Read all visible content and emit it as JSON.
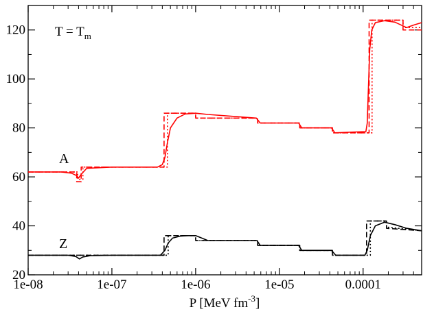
{
  "chart_data": {
    "type": "line",
    "title": "",
    "xlabel": "P [MeV fm",
    "xlabel_exp": "-3",
    "xlabel_end": "]",
    "ylabel": "",
    "xscale": "log",
    "xlim": [
      1e-08,
      0.0005
    ],
    "ylim": [
      20,
      130
    ],
    "grid": false,
    "x_ticks": [
      {
        "value": 1e-08,
        "label": "1e-08"
      },
      {
        "value": 1e-07,
        "label": "1e-07"
      },
      {
        "value": 1e-06,
        "label": "1e-06"
      },
      {
        "value": 1e-05,
        "label": "1e-05"
      },
      {
        "value": 0.0001,
        "label": "0.0001"
      }
    ],
    "y_ticks": [
      {
        "value": 20,
        "label": "20"
      },
      {
        "value": 40,
        "label": "40"
      },
      {
        "value": 60,
        "label": "60"
      },
      {
        "value": 80,
        "label": "80"
      },
      {
        "value": 100,
        "label": "100"
      },
      {
        "value": 120,
        "label": "120"
      }
    ],
    "annotations": {
      "temperature": {
        "main": "T = T",
        "sub": "m",
        "x": 1.5e-08,
        "y": 122
      },
      "A": {
        "text": "A",
        "x": 1.45e-08,
        "y": 64,
        "color": "#ff0000"
      },
      "Z": {
        "text": "Z",
        "x": 1.45e-08,
        "y": 29,
        "color": "#000000"
      }
    },
    "series": [
      {
        "color": "#ff0000",
        "dash": "8,4",
        "x": [
          1e-08,
          3.8e-08,
          3.8e-08,
          4.3e-08,
          4.3e-08,
          4.2e-07,
          4.2e-07,
          1e-06,
          1e-06,
          5.5e-06,
          5.5e-06,
          1.75e-05,
          1.75e-05,
          4.3e-05,
          4.3e-05,
          0.000118,
          0.000118,
          0.0003,
          0.0003,
          0.0005
        ],
        "y": [
          62,
          62,
          58,
          58,
          64,
          64,
          86,
          86,
          84,
          84,
          82,
          82,
          80,
          80,
          78,
          78,
          124,
          124,
          120,
          120
        ]
      },
      {
        "color": "#ff0000",
        "dash": "2,3",
        "x": [
          1e-08,
          3.9e-08,
          3.9e-08,
          4.5e-08,
          4.5e-08,
          4.6e-07,
          4.6e-07,
          1e-06,
          1e-06,
          5.5e-06,
          5.5e-06,
          1.75e-05,
          1.75e-05,
          4.3e-05,
          4.3e-05,
          0.000128,
          0.000128,
          0.0003,
          0.0003,
          0.0005
        ],
        "y": [
          62,
          62,
          59,
          59,
          64,
          64,
          86,
          86,
          84,
          84,
          82,
          82,
          80,
          80,
          78,
          78,
          124,
          124,
          121,
          121
        ]
      },
      {
        "color": "#ff0000",
        "dash": "",
        "x": [
          1e-08,
          2.5e-08,
          3.3e-08,
          3.8e-08,
          4e-08,
          4.3e-08,
          5e-08,
          1e-07,
          3.5e-07,
          4e-07,
          4.3e-07,
          4.6e-07,
          5e-07,
          6e-07,
          7.5e-07,
          1e-06,
          1.4e-06,
          5.3e-06,
          5.9e-06,
          1.7e-05,
          1.85e-05,
          4.2e-05,
          4.6e-05,
          0.000108,
          0.000112,
          0.000115,
          0.00012,
          0.000127,
          0.00014,
          0.00018,
          0.00024,
          0.00033,
          0.0004,
          0.0005
        ],
        "y": [
          62,
          62,
          61.5,
          60.5,
          59.5,
          61,
          63.5,
          64,
          64,
          65,
          68,
          74,
          80,
          84,
          85.7,
          86,
          85.5,
          84,
          82,
          82,
          80,
          80,
          78,
          78.5,
          82,
          94,
          112,
          120,
          123,
          123.8,
          123.2,
          121,
          122,
          123
        ]
      },
      {
        "color": "#000000",
        "dash": "8,4",
        "x": [
          1e-08,
          4.2e-07,
          4.2e-07,
          1e-06,
          1e-06,
          5.5e-06,
          5.5e-06,
          1.75e-05,
          1.75e-05,
          4.3e-05,
          4.3e-05,
          0.00011,
          0.00011,
          0.00019,
          0.00019,
          0.0005
        ],
        "y": [
          28,
          28,
          36,
          36,
          34,
          34,
          32,
          32,
          30,
          30,
          28,
          28,
          42,
          42,
          39,
          38
        ]
      },
      {
        "color": "#000000",
        "dash": "2,3",
        "x": [
          1e-08,
          4.7e-07,
          4.7e-07,
          1e-06,
          1e-06,
          5.5e-06,
          5.5e-06,
          1.75e-05,
          1.75e-05,
          4.3e-05,
          4.3e-05,
          0.000122,
          0.000122,
          0.00019,
          0.00019,
          0.0005
        ],
        "y": [
          28,
          28,
          36,
          36,
          34,
          34,
          32,
          32,
          30,
          30,
          28,
          28,
          42,
          42,
          39.5,
          38
        ]
      },
      {
        "color": "#000000",
        "dash": "",
        "x": [
          1e-08,
          3e-08,
          3.7e-08,
          4.1e-08,
          4.5e-08,
          5.5e-08,
          1e-07,
          3.8e-07,
          4.3e-07,
          4.7e-07,
          5.3e-07,
          6.5e-07,
          8e-07,
          1e-06,
          1.4e-06,
          5.4e-06,
          5.9e-06,
          1.7e-05,
          1.85e-05,
          4.2e-05,
          4.7e-05,
          0.000105,
          0.000112,
          0.000122,
          0.00014,
          0.00018,
          0.00024,
          0.00033,
          0.0005
        ],
        "y": [
          28,
          28,
          27.5,
          26.5,
          27.3,
          27.8,
          28,
          28,
          30,
          33,
          35,
          35.8,
          36,
          36,
          34,
          34,
          32,
          32,
          30,
          30,
          28,
          28,
          30,
          36,
          40,
          41.5,
          40.5,
          39,
          38
        ]
      }
    ]
  }
}
